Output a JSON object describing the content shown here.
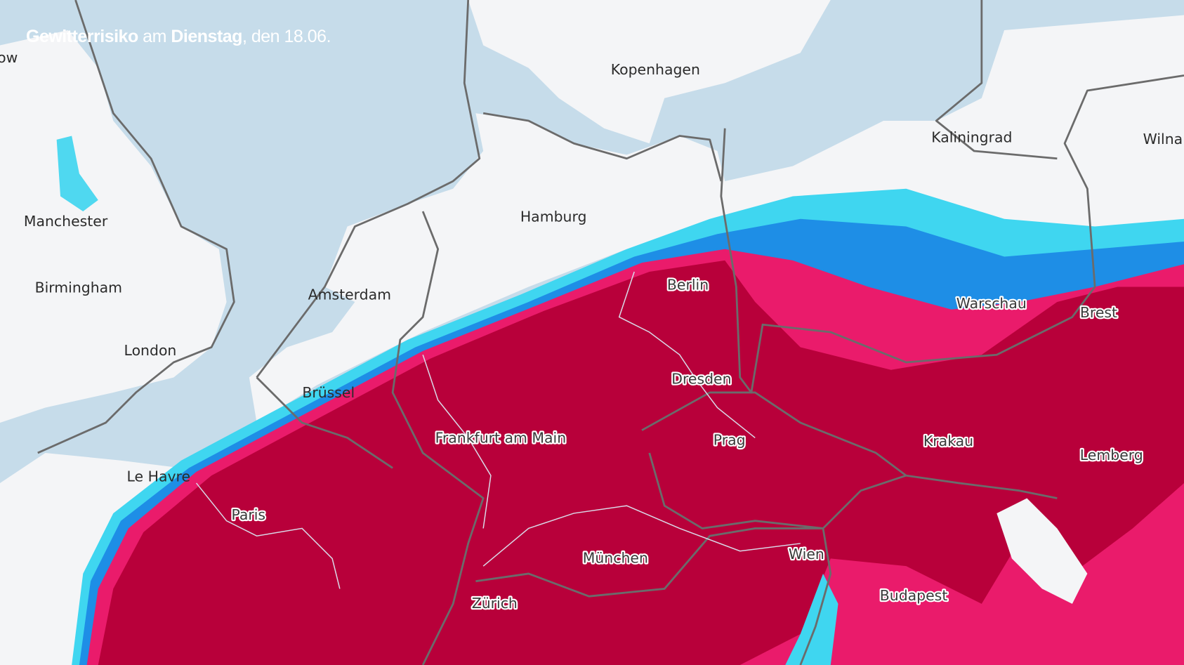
{
  "title": {
    "part1": "Gewitterrisiko",
    "part2": " am ",
    "part3": "Dienstag",
    "part4": ", den 18.06."
  },
  "cities": {
    "glasgow_partial": "ow",
    "kopenhagen": "Kopenhagen",
    "kaliningrad": "Kaliningrad",
    "wilna": "Wilna",
    "manchester": "Manchester",
    "hamburg": "Hamburg",
    "birmingham": "Birmingham",
    "amsterdam": "Amsterdam",
    "berlin": "Berlin",
    "warschau": "Warschau",
    "brest": "Brest",
    "london": "London",
    "dresden": "Dresden",
    "bruessel": "Brüssel",
    "frankfurt": "Frankfurt am Main",
    "prag": "Prag",
    "krakau": "Krakau",
    "lemberg": "Lemberg",
    "le_havre": "Le Havre",
    "paris": "Paris",
    "muenchen": "München",
    "wien": "Wien",
    "zuerich": "Zürich",
    "budapest": "Budapest"
  },
  "colors": {
    "sea": "#c6dcea",
    "land": "#f4f5f7",
    "risk_low": "#3fd6f0",
    "risk_medium": "#1e8ee6",
    "risk_high": "#ea1b6b",
    "risk_very_high": "#b8003a"
  }
}
